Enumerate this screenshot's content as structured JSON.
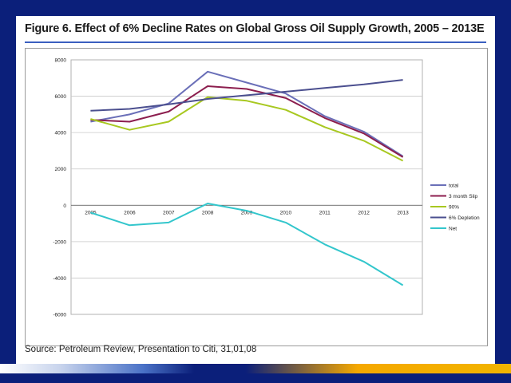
{
  "slide": {
    "title": "Figure 6. Effect of 6% Decline Rates on Global Gross Oil Supply Growth, 2005 – 2013E",
    "source": "Source: Petroleum Review, Presentation to Citi, 31,01,08"
  },
  "colors": {
    "background": "#0b1f7a",
    "title_rule": "#3b5fc0"
  },
  "chart_data": {
    "type": "line",
    "x": [
      "2005",
      "2006",
      "2007",
      "2008",
      "2009",
      "2010",
      "2011",
      "2012",
      "2013"
    ],
    "ylim": [
      -6000,
      8000
    ],
    "yticks": [
      "8000",
      "6000",
      "4000",
      "2000",
      "0",
      "-2000",
      "-4000",
      "-6000"
    ],
    "grid": true,
    "legend_position": "right",
    "series": [
      {
        "name": "total",
        "color": "#6a6fb8",
        "values": [
          4600,
          5000,
          5600,
          7350,
          6750,
          6150,
          4900,
          4050,
          2700
        ]
      },
      {
        "name": "3 month Slip",
        "color": "#8c1e4e",
        "values": [
          4700,
          4600,
          5150,
          6550,
          6400,
          5900,
          4800,
          3950,
          2650
        ]
      },
      {
        "name": "90%",
        "color": "#a8c820",
        "values": [
          4750,
          4150,
          4600,
          5950,
          5750,
          5250,
          4300,
          3550,
          2450
        ]
      },
      {
        "name": "6% Depletion",
        "color": "#4b4f8f",
        "values": [
          5200,
          5300,
          5550,
          5850,
          6050,
          6250,
          6450,
          6650,
          6900
        ]
      },
      {
        "name": "Net",
        "color": "#33c6cc",
        "values": [
          -400,
          -1100,
          -950,
          100,
          -300,
          -950,
          -2150,
          -3100,
          -4400
        ]
      }
    ]
  }
}
